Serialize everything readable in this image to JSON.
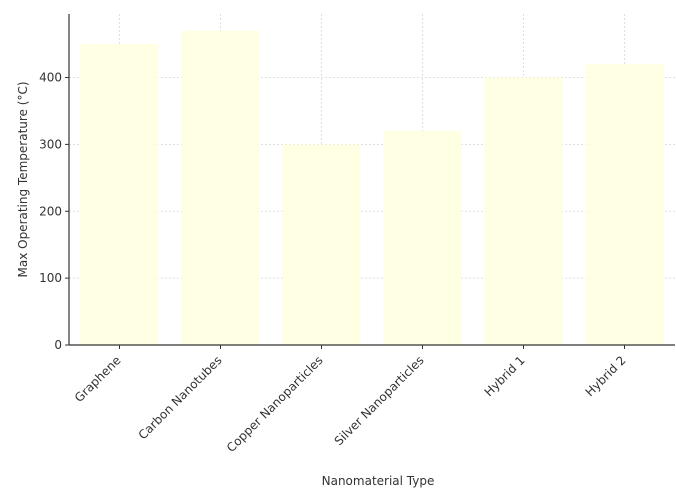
{
  "chart_data": {
    "type": "bar",
    "categories": [
      "Graphene",
      "Carbon Nanotubes",
      "Copper Nanoparticles",
      "Silver Nanoparticles",
      "Hybrid 1",
      "Hybrid 2"
    ],
    "values": [
      450,
      470,
      300,
      320,
      400,
      420
    ],
    "xlabel": "Nanomaterial Type",
    "ylabel": "Max Operating Temperature (°C)",
    "ylim": [
      0,
      495
    ],
    "yticks": [
      0,
      100,
      200,
      300,
      400
    ],
    "grid": true,
    "bar_color": "#ffffe0"
  }
}
